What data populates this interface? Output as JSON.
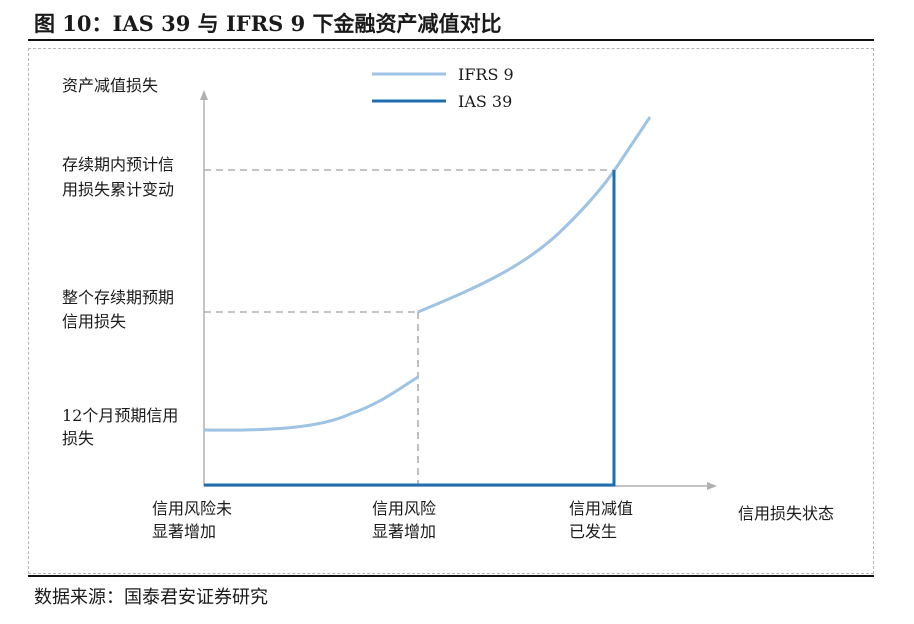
{
  "figure_title": "图 10：IAS 39 与 IFRS 9 下金融资产减值对比",
  "source_note": "数据来源：国泰君安证券研究",
  "colors": {
    "ifrs9": "#9fc3e4",
    "ias39": "#1f6fb0",
    "axis": "#b0b0b0",
    "guide": "#b0b0b0"
  },
  "chart_data": {
    "type": "line",
    "ylabel": "资产减值损失",
    "xlabel": "信用损失状态",
    "x_ticks": [
      {
        "lines": [
          "信用风险未",
          "显著增加"
        ]
      },
      {
        "lines": [
          "信用风险",
          "显著增加"
        ]
      },
      {
        "lines": [
          "信用减值",
          "已发生"
        ]
      }
    ],
    "y_levels": [
      {
        "lines": [
          "12个月预期信用",
          "损失"
        ]
      },
      {
        "lines": [
          "整个存续期预期",
          "信用损失"
        ]
      },
      {
        "lines": [
          "存续期内预计信",
          "用损失累计变动"
        ]
      }
    ],
    "legend_position": "top",
    "series": [
      {
        "name": "IFRS 9"
      },
      {
        "name": "IAS 39"
      }
    ],
    "grid": false
  }
}
